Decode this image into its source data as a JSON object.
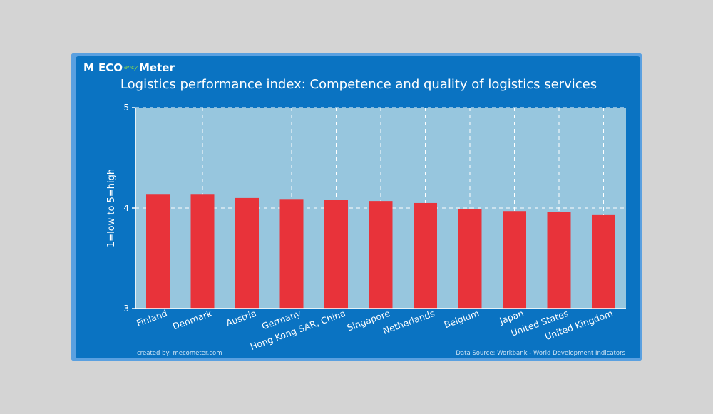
{
  "logo": {
    "brand_left": "M",
    "brand_mid": "ECO",
    "brand_right": "Meter",
    "brand_script": "ency"
  },
  "footer": {
    "created_by": "created by: mecometer.com",
    "source": "Data Source: Workbank - World Development Indicators"
  },
  "colors": {
    "background": "#d4d4d4",
    "card": "#0a73c2",
    "plot": "#97c6de",
    "bar": "#e8333a",
    "text": "#ffffff"
  },
  "chart_data": {
    "type": "bar",
    "title": "Logistics performance index: Competence and quality of logistics services",
    "xlabel": "",
    "ylabel": "1=low to 5=high",
    "ylim": [
      3,
      5
    ],
    "yticks": [
      "3",
      "4",
      "5"
    ],
    "grid": true,
    "categories": [
      "Finland",
      "Denmark",
      "Austria",
      "Germany",
      "Hong Kong SAR, China",
      "Singapore",
      "Netherlands",
      "Belgium",
      "Japan",
      "United States",
      "United Kingdom"
    ],
    "values": [
      4.14,
      4.14,
      4.1,
      4.09,
      4.08,
      4.07,
      4.05,
      3.99,
      3.97,
      3.96,
      3.93
    ]
  }
}
